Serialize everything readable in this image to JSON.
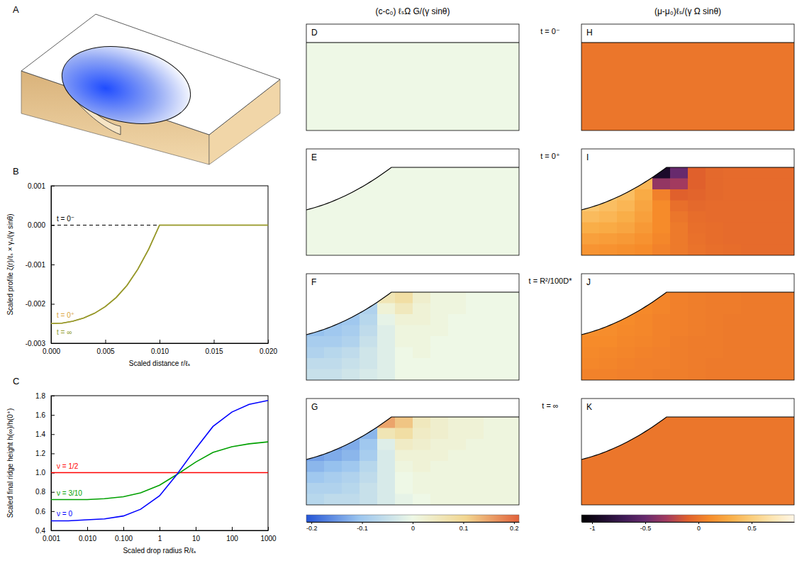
{
  "chart_data": [
    {
      "type": "line",
      "label": "B",
      "x": [
        0,
        0.001,
        0.002,
        0.003,
        0.004,
        0.005,
        0.006,
        0.007,
        0.008,
        0.009,
        0.01,
        0.015,
        0.02
      ],
      "xlim": [
        0,
        0.02
      ],
      "ylim": [
        -0.003,
        0.001
      ],
      "xticks": [
        {
          "value": 0,
          "label": "0.000"
        },
        0.005,
        {
          "value": 0.01,
          "label": "0.010"
        },
        0.015,
        {
          "value": 0.02,
          "label": "0.020"
        }
      ],
      "yticks": [
        -0.003,
        -0.002,
        -0.001,
        {
          "value": 0,
          "label": "0.000"
        },
        0.001
      ],
      "x_label": "Scaled distance r/ℓₛ",
      "y_label": "Scaled profile ζ(r)/ℓₛ × γₛ/(γ sinθ)",
      "series": [
        {
          "name": "t = 0⁻",
          "color": "#000000",
          "line_style": "dashed",
          "values": [
            0,
            0,
            0,
            0,
            0,
            0,
            0,
            0,
            0,
            0,
            0,
            0,
            0
          ]
        },
        {
          "name": "t = 0⁺",
          "color": "#d9a23a",
          "line_style": "solid",
          "values": [
            -0.0025,
            -0.00249,
            -0.00244,
            -0.00236,
            -0.00224,
            -0.00207,
            -0.00184,
            -0.00153,
            -0.00112,
            -0.00061,
            0,
            0,
            0
          ]
        },
        {
          "name": "t = ∞",
          "color": "#8f9a2e",
          "line_style": "solid",
          "values": [
            -0.0025,
            -0.00249,
            -0.00244,
            -0.00236,
            -0.00224,
            -0.00207,
            -0.00184,
            -0.00153,
            -0.00112,
            -0.00061,
            0,
            0,
            0
          ]
        }
      ]
    },
    {
      "type": "line",
      "label": "C",
      "log": "x",
      "x": [
        0.001,
        0.003,
        0.01,
        0.03,
        0.1,
        0.3,
        1,
        3,
        10,
        30,
        100,
        300,
        1000
      ],
      "xlim": [
        0.001,
        1000
      ],
      "ylim": [
        0.4,
        1.8
      ],
      "xticks": [
        0.001,
        {
          "value": 0.01,
          "label": "0.010"
        },
        {
          "value": 0.1,
          "label": "0.100"
        },
        1,
        10,
        100,
        1000
      ],
      "yticks": [
        0.4,
        0.6,
        0.8,
        {
          "value": 1,
          "label": "1.0"
        },
        1.2,
        1.4,
        1.6,
        1.8
      ],
      "x_label": "Scaled drop radius R/ℓₛ",
      "y_label": "Scaled final ridge height h(∞)/h(0⁺)",
      "series": [
        {
          "name": "ν = 1/2",
          "color": "#ff0000",
          "line_style": "solid",
          "values": [
            1,
            1,
            1,
            1,
            1,
            1,
            1,
            1,
            1,
            1,
            1,
            1,
            1
          ]
        },
        {
          "name": "ν = 3/10",
          "color": "#00a000",
          "line_style": "solid",
          "values": [
            0.72,
            0.72,
            0.72,
            0.73,
            0.75,
            0.79,
            0.87,
            0.98,
            1.11,
            1.21,
            1.27,
            1.3,
            1.32
          ]
        },
        {
          "name": "ν = 0",
          "color": "#0000ff",
          "line_style": "solid",
          "values": [
            0.5,
            0.5,
            0.51,
            0.52,
            0.55,
            0.62,
            0.76,
            0.98,
            1.25,
            1.48,
            1.63,
            1.71,
            1.75
          ]
        }
      ]
    },
    {
      "type": "heatmap",
      "row_labels": [
        "t = 0⁻",
        "t = 0⁺",
        "t = R²/100D*",
        "t = ∞"
      ],
      "columns": [
        {
          "title": "(c-c₀) ℓₛΩ G/(γ sinθ)",
          "colorbar": {
            "range": [
              -0.21,
              0.21
            ],
            "ticks": [
              -0.2,
              -0.1,
              0,
              0.1,
              0.2
            ],
            "colors": [
              "#2454d6",
              "#9cc6ef",
              "#eef8e6",
              "#f2d690",
              "#e2613a"
            ]
          },
          "panels": [
            {
              "label": "D",
              "cells": [
                [
                  0
                ]
              ]
            },
            {
              "label": "E",
              "cells": [
                [
                  0
                ]
              ]
            },
            {
              "label": "F",
              "cells": [
                [
                  -0.14,
                  -0.13,
                  -0.12,
                  -0.1,
                  0.06,
                  0.08,
                  0.03,
                  0.01,
                  0.01,
                  0,
                  0,
                  0
                ],
                [
                  -0.13,
                  -0.12,
                  -0.11,
                  -0.08,
                  0.02,
                  0.05,
                  0.02,
                  0.01,
                  0.01,
                  0,
                  0,
                  0
                ],
                [
                  -0.12,
                  -0.11,
                  -0.1,
                  -0.07,
                  -0.01,
                  0.02,
                  0.02,
                  0.01,
                  0,
                  0,
                  0,
                  0
                ],
                [
                  -0.11,
                  -0.1,
                  -0.09,
                  -0.06,
                  -0.02,
                  0.01,
                  0.01,
                  0.01,
                  0,
                  0,
                  0,
                  0
                ],
                [
                  -0.09,
                  -0.09,
                  -0.08,
                  -0.05,
                  -0.02,
                  0.01,
                  0.01,
                  0,
                  0,
                  0,
                  0,
                  0
                ],
                [
                  -0.08,
                  -0.07,
                  -0.06,
                  -0.04,
                  -0.02,
                  0,
                  0.01,
                  0,
                  0,
                  0,
                  0,
                  0
                ],
                [
                  -0.06,
                  -0.06,
                  -0.05,
                  -0.04,
                  -0.02,
                  0,
                  0,
                  0,
                  0,
                  0,
                  0,
                  0
                ],
                [
                  -0.05,
                  -0.05,
                  -0.04,
                  -0.03,
                  -0.02,
                  0,
                  0,
                  0,
                  0,
                  0,
                  0,
                  0
                ]
              ]
            },
            {
              "label": "G",
              "cells": [
                [
                  -0.2,
                  -0.19,
                  -0.17,
                  -0.14,
                  0.15,
                  0.12,
                  0.05,
                  0.03,
                  0.02,
                  0.02,
                  0.01,
                  0.01
                ],
                [
                  -0.18,
                  -0.17,
                  -0.15,
                  -0.12,
                  0.06,
                  0.08,
                  0.04,
                  0.03,
                  0.02,
                  0.02,
                  0.01,
                  0.01
                ],
                [
                  -0.16,
                  -0.15,
                  -0.13,
                  -0.1,
                  -0.02,
                  0.04,
                  0.03,
                  0.02,
                  0.02,
                  0.01,
                  0.01,
                  0.01
                ],
                [
                  -0.14,
                  -0.13,
                  -0.12,
                  -0.09,
                  -0.03,
                  0.02,
                  0.02,
                  0.02,
                  0.01,
                  0.01,
                  0.01,
                  0.01
                ],
                [
                  -0.12,
                  -0.11,
                  -0.1,
                  -0.07,
                  -0.03,
                  0.01,
                  0.02,
                  0.01,
                  0.01,
                  0.01,
                  0.01,
                  0.01
                ],
                [
                  -0.1,
                  -0.09,
                  -0.08,
                  -0.06,
                  -0.03,
                  0,
                  0.01,
                  0.01,
                  0.01,
                  0.01,
                  0.01,
                  0.01
                ],
                [
                  -0.08,
                  -0.08,
                  -0.07,
                  -0.05,
                  -0.03,
                  0,
                  0.01,
                  0.01,
                  0.01,
                  0.01,
                  0.01,
                  0.01
                ],
                [
                  -0.07,
                  -0.06,
                  -0.06,
                  -0.05,
                  -0.03,
                  -0.01,
                  0,
                  0.01,
                  0.01,
                  0.01,
                  0.01,
                  0.01
                ]
              ]
            }
          ]
        },
        {
          "title": "(μ-μ₀)ℓₛ/(γ Ω sinθ)",
          "colorbar": {
            "range": [
              -1.1,
              0.9
            ],
            "ticks": [
              -1,
              -0.5,
              0,
              0.5
            ],
            "colors": [
              "#000000",
              "#1c0b2b",
              "#3e1a55",
              "#672a6d",
              "#a23a5f",
              "#e0602c",
              "#f68b2a",
              "#f9ae48",
              "#fbce7c",
              "#fde6b4",
              "#fff6e6"
            ]
          },
          "panels": [
            {
              "label": "H",
              "cells": [
                [
                  0
                ]
              ]
            },
            {
              "label": "I",
              "cells": [
                [
                  0.6,
                  0.55,
                  0.5,
                  0.4,
                  -0.9,
                  -0.5,
                  -0.1,
                  -0.06,
                  -0.05,
                  -0.05,
                  -0.05,
                  -0.05
                ],
                [
                  0.55,
                  0.5,
                  0.45,
                  0.35,
                  -0.35,
                  -0.3,
                  -0.1,
                  -0.06,
                  -0.05,
                  -0.05,
                  -0.05,
                  -0.05
                ],
                [
                  0.5,
                  0.45,
                  0.4,
                  0.28,
                  0.05,
                  -0.1,
                  -0.08,
                  -0.06,
                  -0.05,
                  -0.05,
                  -0.05,
                  -0.05
                ],
                [
                  0.45,
                  0.4,
                  0.35,
                  0.25,
                  0.1,
                  -0.03,
                  -0.06,
                  -0.05,
                  -0.05,
                  -0.05,
                  -0.05,
                  -0.05
                ],
                [
                  0.38,
                  0.35,
                  0.3,
                  0.22,
                  0.1,
                  0,
                  -0.04,
                  -0.05,
                  -0.05,
                  -0.05,
                  -0.05,
                  -0.05
                ],
                [
                  0.3,
                  0.28,
                  0.25,
                  0.18,
                  0.1,
                  0.02,
                  -0.03,
                  -0.04,
                  -0.05,
                  -0.05,
                  -0.05,
                  -0.05
                ],
                [
                  0.22,
                  0.2,
                  0.18,
                  0.14,
                  0.08,
                  0.02,
                  -0.02,
                  -0.04,
                  -0.05,
                  -0.05,
                  -0.05,
                  -0.05
                ],
                [
                  0.15,
                  0.14,
                  0.12,
                  0.1,
                  0.06,
                  0.02,
                  -0.01,
                  -0.03,
                  -0.04,
                  -0.05,
                  -0.05,
                  -0.05
                ]
              ]
            },
            {
              "label": "J",
              "cells": [
                [
                  0.15,
                  0.14,
                  0.12,
                  0.1,
                  0.07,
                  0.05,
                  0.04,
                  0.03,
                  0.03,
                  0.02,
                  0.02,
                  0.02
                ],
                [
                  0.14,
                  0.13,
                  0.11,
                  0.09,
                  0.07,
                  0.05,
                  0.04,
                  0.03,
                  0.03,
                  0.02,
                  0.02,
                  0.02
                ],
                [
                  0.13,
                  0.12,
                  0.1,
                  0.08,
                  0.06,
                  0.05,
                  0.04,
                  0.03,
                  0.02,
                  0.02,
                  0.02,
                  0.02
                ],
                [
                  0.12,
                  0.11,
                  0.09,
                  0.08,
                  0.06,
                  0.05,
                  0.04,
                  0.03,
                  0.02,
                  0.02,
                  0.02,
                  0.02
                ],
                [
                  0.1,
                  0.1,
                  0.08,
                  0.07,
                  0.06,
                  0.04,
                  0.03,
                  0.03,
                  0.02,
                  0.02,
                  0.02,
                  0.02
                ],
                [
                  0.09,
                  0.08,
                  0.07,
                  0.06,
                  0.05,
                  0.04,
                  0.03,
                  0.03,
                  0.02,
                  0.02,
                  0.02,
                  0.02
                ],
                [
                  0.08,
                  0.07,
                  0.06,
                  0.05,
                  0.05,
                  0.04,
                  0.03,
                  0.02,
                  0.02,
                  0.02,
                  0.02,
                  0.02
                ],
                [
                  0.06,
                  0.06,
                  0.05,
                  0.05,
                  0.04,
                  0.04,
                  0.03,
                  0.02,
                  0.02,
                  0.02,
                  0.02,
                  0.02
                ]
              ]
            },
            {
              "label": "K",
              "cells": [
                [
                  0
                ]
              ]
            }
          ]
        }
      ]
    }
  ],
  "illustration": {
    "label": "A"
  }
}
